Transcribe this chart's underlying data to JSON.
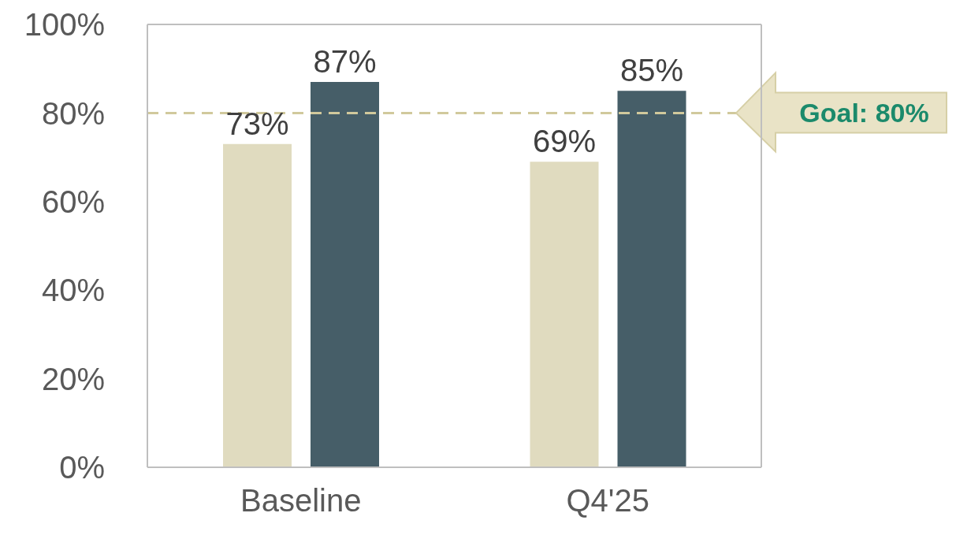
{
  "chart_data": {
    "type": "bar",
    "categories": [
      "Baseline",
      "Q4'25"
    ],
    "series": [
      {
        "color": "#e0dbbf",
        "values": [
          73,
          69
        ],
        "value_labels": [
          "73%",
          "69%"
        ]
      },
      {
        "color": "#465e68",
        "values": [
          87,
          85
        ],
        "value_labels": [
          "87%",
          "85%"
        ]
      }
    ],
    "ylim": [
      0,
      100
    ],
    "yticks": [
      {
        "value": 0,
        "label": "0%"
      },
      {
        "value": 20,
        "label": "20%"
      },
      {
        "value": 40,
        "label": "40%"
      },
      {
        "value": 60,
        "label": "60%"
      },
      {
        "value": 80,
        "label": "80%"
      },
      {
        "value": 100,
        "label": "100%"
      }
    ],
    "ref_lines": [
      {
        "axis": "y",
        "value": 80,
        "label": "Goal: 80%",
        "color": "#d1c99c",
        "line_style": "dashed"
      }
    ]
  }
}
